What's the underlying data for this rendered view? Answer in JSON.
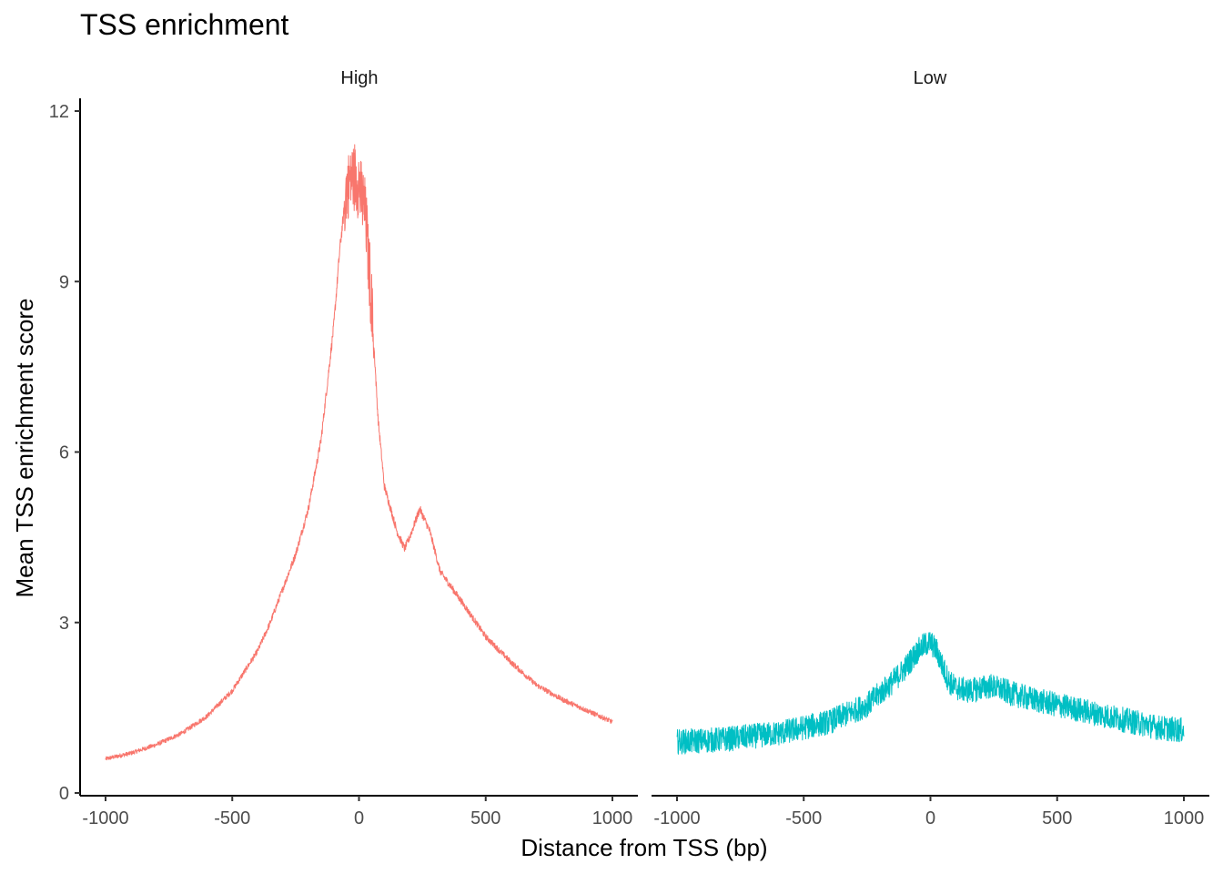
{
  "chart_data": {
    "type": "line",
    "title": "TSS enrichment",
    "xlabel": "Distance from TSS (bp)",
    "ylabel": "Mean TSS enrichment score",
    "xlim": [
      -1000,
      1000
    ],
    "ylim": [
      0,
      12
    ],
    "x_ticks": [
      -1000,
      -500,
      0,
      500,
      1000
    ],
    "x_tick_labels": [
      "-1000",
      "-500",
      "0",
      "500",
      "1000"
    ],
    "y_ticks": [
      0,
      3,
      6,
      9,
      12
    ],
    "y_tick_labels": [
      "0",
      "3",
      "6",
      "9",
      "12"
    ],
    "grid": false,
    "legend": "none",
    "x": [
      -1000,
      -900,
      -800,
      -700,
      -600,
      -500,
      -400,
      -350,
      -300,
      -250,
      -200,
      -150,
      -100,
      -75,
      -50,
      -25,
      0,
      25,
      50,
      75,
      100,
      150,
      180,
      200,
      240,
      280,
      320,
      400,
      500,
      600,
      700,
      800,
      900,
      1000
    ],
    "panels": [
      {
        "name": "High",
        "color": "#F8766D",
        "values": [
          0.6,
          0.7,
          0.85,
          1.05,
          1.35,
          1.8,
          2.5,
          3.0,
          3.6,
          4.2,
          5.0,
          6.2,
          8.2,
          9.6,
          10.6,
          10.9,
          10.7,
          10.2,
          8.6,
          6.6,
          5.4,
          4.6,
          4.3,
          4.5,
          5.0,
          4.6,
          3.9,
          3.4,
          2.75,
          2.3,
          1.9,
          1.65,
          1.45,
          1.25
        ],
        "noise": 0.08
      },
      {
        "name": "Low",
        "color": "#00BFC4",
        "values": [
          0.9,
          0.92,
          0.95,
          1.0,
          1.05,
          1.15,
          1.25,
          1.35,
          1.45,
          1.55,
          1.75,
          1.95,
          2.2,
          2.35,
          2.5,
          2.6,
          2.65,
          2.5,
          2.2,
          1.95,
          1.85,
          1.8,
          1.82,
          1.85,
          1.88,
          1.82,
          1.75,
          1.65,
          1.55,
          1.45,
          1.35,
          1.25,
          1.15,
          1.1
        ],
        "noise": 0.22
      }
    ]
  }
}
